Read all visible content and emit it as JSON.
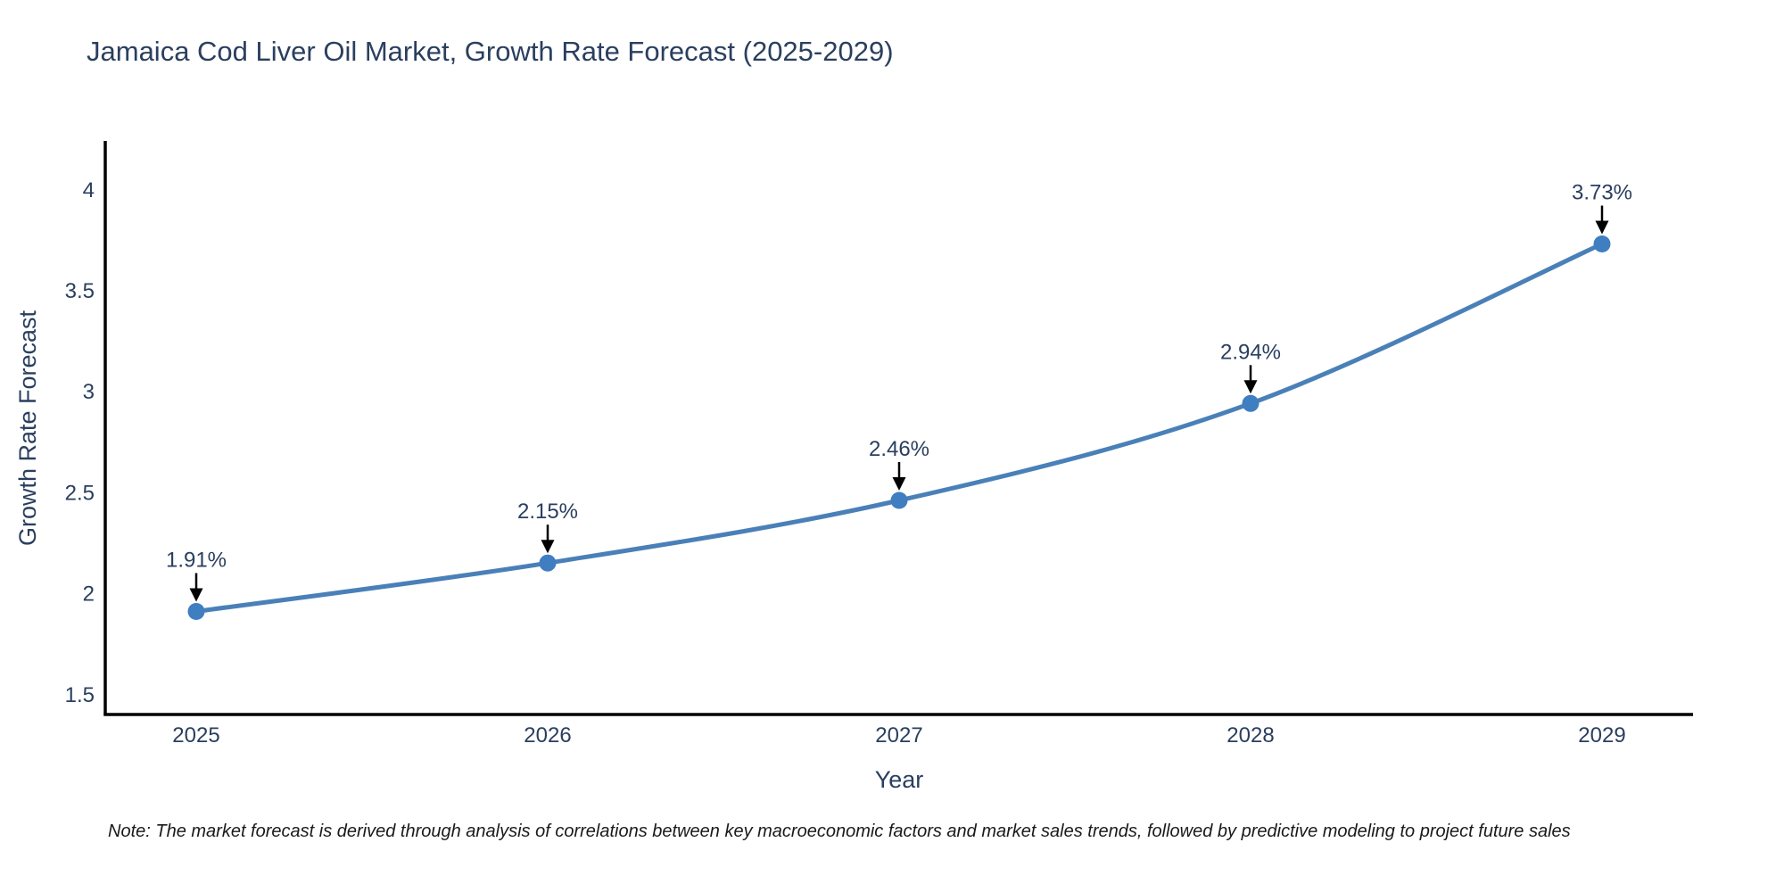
{
  "chart_data": {
    "type": "line",
    "title": "Jamaica Cod Liver Oil Market, Growth Rate Forecast (2025-2029)",
    "xlabel": "Year",
    "ylabel": "Growth Rate Forecast",
    "categories": [
      "2025",
      "2026",
      "2027",
      "2028",
      "2029"
    ],
    "values": [
      1.91,
      2.15,
      2.46,
      2.94,
      3.73
    ],
    "point_labels": [
      "1.91%",
      "2.15%",
      "2.46%",
      "2.94%",
      "3.73%"
    ],
    "series_name": "Growth Rate Forecast",
    "y_tick_labels": [
      "1.5",
      "2",
      "2.5",
      "3",
      "3.5",
      "4"
    ],
    "y_tick_values": [
      1.5,
      2,
      2.5,
      3,
      3.5,
      4
    ],
    "ylim": [
      1.4,
      4.24
    ],
    "grid": false,
    "legend": "none",
    "line_shape": "spline",
    "annotation_style": "value label with down arrow to marker",
    "note": "Note: The market forecast is derived through analysis of correlations between key macroeconomic factors and market sales trends, followed by predictive modeling to project future sales",
    "colors": {
      "line": "#4a80b8",
      "marker": "#3f7ec0",
      "title_text": "#2a3f5f",
      "axis_text": "#2a3f5f",
      "axis_line": "#000000",
      "annotation_text": "#2a3f5f",
      "arrow": "#000000",
      "note_text": "#1a1a1a",
      "background": "#ffffff"
    }
  }
}
